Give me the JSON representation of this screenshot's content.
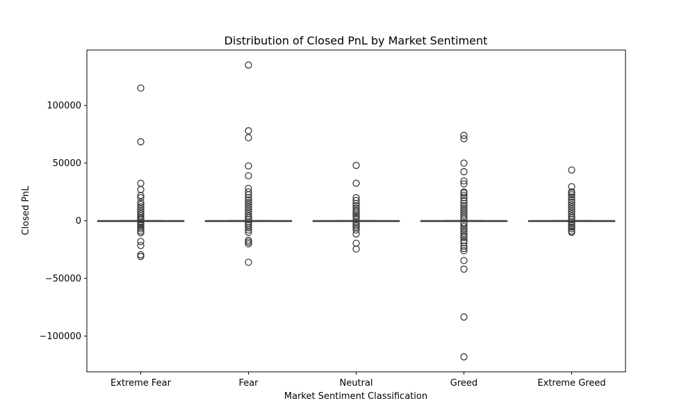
{
  "chart_data": {
    "type": "box",
    "title": "Distribution of Closed PnL by Market Sentiment",
    "xlabel": "Market Sentiment Classification",
    "ylabel": "Closed PnL",
    "categories": [
      "Extreme Fear",
      "Fear",
      "Neutral",
      "Greed",
      "Extreme Greed"
    ],
    "ylim": [
      -131000,
      148000
    ],
    "yticks": [
      -100000,
      -50000,
      0,
      50000,
      100000
    ],
    "ytick_labels": [
      "−100000",
      "−50000",
      "0",
      "50000",
      "100000"
    ],
    "grid": false,
    "box_color": "#3a3a3a",
    "series": [
      {
        "box": {
          "q1": 0,
          "median": 0,
          "q3": 0,
          "whisker_low": 0,
          "whisker_high": 0
        },
        "outliers": [
          115000,
          68500,
          32500,
          27000,
          22000,
          20000,
          16000,
          14000,
          12000,
          10000,
          8000,
          6000,
          4500,
          3000,
          2000,
          1000,
          -1000,
          -2000,
          -3000,
          -4000,
          -5500,
          -7000,
          -9000,
          -10500,
          -18000,
          -21500,
          -29500,
          -31000
        ]
      },
      {
        "box": {
          "q1": 0,
          "median": 0,
          "q3": 0,
          "whisker_low": 0,
          "whisker_high": 0
        },
        "outliers": [
          135000,
          78000,
          72000,
          47500,
          39000,
          28000,
          25000,
          22500,
          20000,
          18000,
          16000,
          14000,
          12000,
          10000,
          8000,
          6000,
          4000,
          2500,
          1000,
          -1000,
          -2500,
          -4000,
          -6000,
          -8000,
          -10000,
          -17000,
          -18500,
          -20000,
          -36000
        ]
      },
      {
        "box": {
          "q1": 0,
          "median": 0,
          "q3": 0,
          "whisker_low": 0,
          "whisker_high": 0
        },
        "outliers": [
          48000,
          32500,
          20000,
          17500,
          15000,
          13000,
          11000,
          9000,
          7500,
          6000,
          4500,
          3000,
          1500,
          -1500,
          -3000,
          -4500,
          -6000,
          -8000,
          -11500,
          -19500,
          -24500
        ]
      },
      {
        "box": {
          "q1": 0,
          "median": 0,
          "q3": 0,
          "whisker_low": 0,
          "whisker_high": 0
        },
        "outliers": [
          74000,
          71000,
          50000,
          42500,
          34500,
          32000,
          25000,
          24000,
          22000,
          20000,
          17500,
          15000,
          13000,
          11000,
          9000,
          7000,
          5000,
          3000,
          1500,
          -1500,
          -3000,
          -5000,
          -7000,
          -9000,
          -11000,
          -13000,
          -14500,
          -17000,
          -19000,
          -22000,
          -24000,
          -26000,
          -34500,
          -42000,
          -83500,
          -118000
        ]
      },
      {
        "box": {
          "q1": 0,
          "median": 0,
          "q3": 0,
          "whisker_low": 0,
          "whisker_high": 0
        },
        "outliers": [
          44000,
          29500,
          25000,
          24000,
          22500,
          20500,
          18000,
          16000,
          14000,
          12000,
          10000,
          8000,
          6000,
          4000,
          2500,
          1000,
          -1000,
          -2500,
          -4000,
          -5500,
          -7000,
          -9000,
          -10000
        ]
      }
    ]
  }
}
